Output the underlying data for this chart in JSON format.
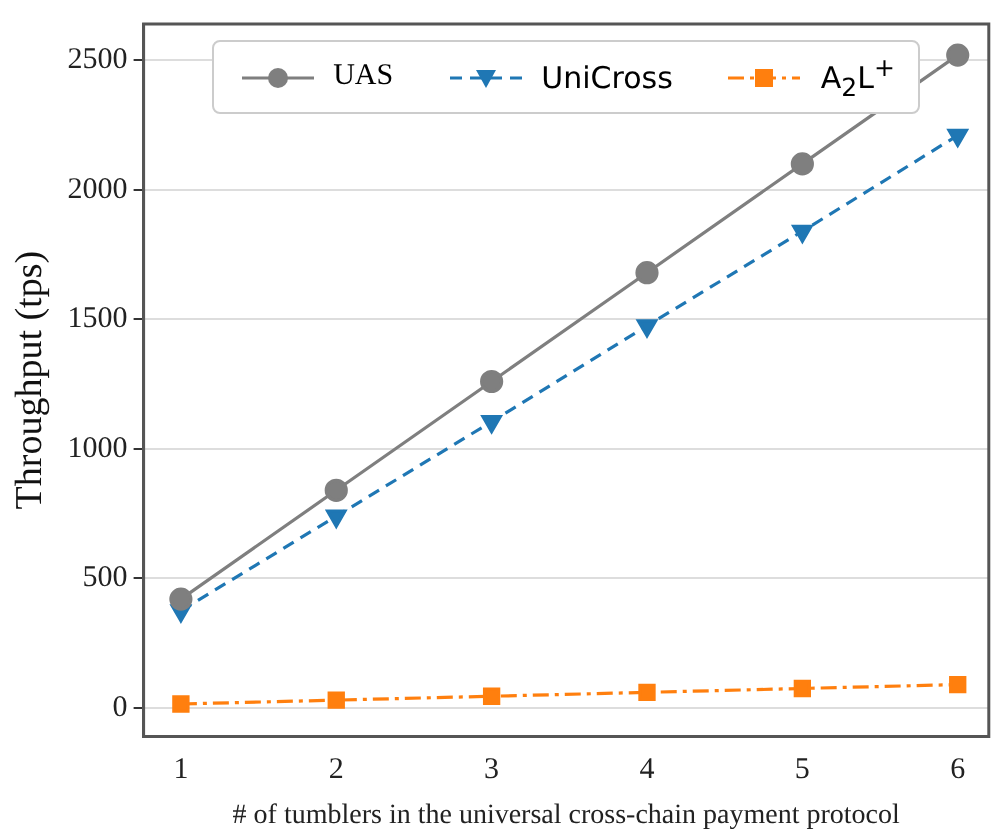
{
  "chart_data": {
    "type": "line",
    "xlabel": "# of tumblers in the universal cross-chain payment protocol",
    "ylabel": "Throughput (tps)",
    "x": [
      1,
      2,
      3,
      4,
      5,
      6
    ],
    "xlim": [
      0.76,
      6.2
    ],
    "xticks": [
      1,
      2,
      3,
      4,
      5,
      6
    ],
    "ylim": [
      -110,
      2640
    ],
    "yticks": [
      0,
      500,
      1000,
      1500,
      2000,
      2500
    ],
    "grid": "y",
    "legend": "top",
    "series": [
      {
        "name": "UAS",
        "color": "#7f7f7f",
        "values": [
          420,
          840,
          1260,
          1680,
          2100,
          2520
        ],
        "marker": "circle",
        "line_style": "solid"
      },
      {
        "name": "UniCross",
        "color": "#1f77b4",
        "values": [
          375,
          740,
          1105,
          1475,
          1840,
          2210
        ],
        "marker": "triangle-down",
        "line_style": "dashed"
      },
      {
        "name": "A$_{2}$L$^{+}$",
        "color": "#ff7f0e",
        "values": [
          15,
          30,
          45,
          60,
          75,
          90
        ],
        "marker": "square",
        "line_style": "dashdot"
      }
    ]
  }
}
